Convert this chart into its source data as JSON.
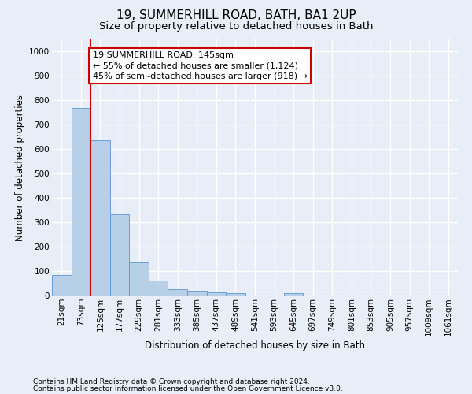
{
  "title1": "19, SUMMERHILL ROAD, BATH, BA1 2UP",
  "title2": "Size of property relative to detached houses in Bath",
  "xlabel": "Distribution of detached houses by size in Bath",
  "ylabel": "Number of detached properties",
  "footer1": "Contains HM Land Registry data © Crown copyright and database right 2024.",
  "footer2": "Contains public sector information licensed under the Open Government Licence v3.0.",
  "categories": [
    "21sqm",
    "73sqm",
    "125sqm",
    "177sqm",
    "229sqm",
    "281sqm",
    "333sqm",
    "385sqm",
    "437sqm",
    "489sqm",
    "541sqm",
    "593sqm",
    "645sqm",
    "697sqm",
    "749sqm",
    "801sqm",
    "853sqm",
    "905sqm",
    "957sqm",
    "1009sqm",
    "1061sqm"
  ],
  "values": [
    83,
    770,
    638,
    333,
    135,
    62,
    26,
    20,
    14,
    9,
    0,
    0,
    10,
    0,
    0,
    0,
    0,
    0,
    0,
    0,
    0
  ],
  "bar_color": "#b8cfe8",
  "bar_edge_color": "#6a9fd8",
  "vline_color": "#cc0000",
  "annotation_text": "19 SUMMERHILL ROAD: 145sqm\n← 55% of detached houses are smaller (1,124)\n45% of semi-detached houses are larger (918) →",
  "annotation_box_facecolor": "white",
  "annotation_box_edgecolor": "#cc0000",
  "ylim": [
    0,
    1050
  ],
  "yticks": [
    0,
    100,
    200,
    300,
    400,
    500,
    600,
    700,
    800,
    900,
    1000
  ],
  "bg_color": "#e8eef7",
  "plot_bg_color": "#e8eef7",
  "grid_color": "white",
  "title1_fontsize": 11,
  "title2_fontsize": 9.5,
  "xlabel_fontsize": 8.5,
  "ylabel_fontsize": 8.5,
  "tick_fontsize": 7.5,
  "annotation_fontsize": 8,
  "footer_fontsize": 6.5
}
